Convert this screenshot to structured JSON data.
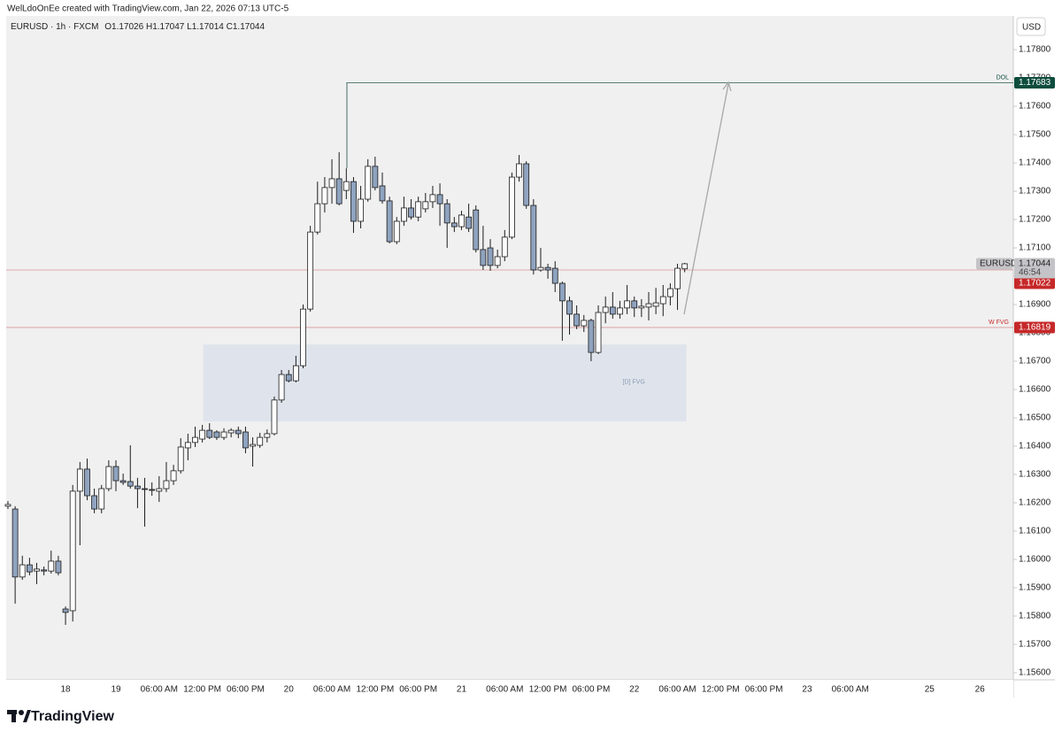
{
  "header": "WelLdoOnEe created with TradingView.com, Jan 22, 2026 07:13 UTC-5",
  "footer": "TradingView",
  "chart_data": {
    "type": "candlestick",
    "symbol": "EURUSD · 1h · FXCM",
    "ohlc_prefixes": [
      "O",
      "H",
      "L",
      "C"
    ],
    "currency": "USD",
    "last_price_symbol": "EURUSD",
    "countdown": "46:54",
    "up_color": "#ffffff",
    "down_color": "#8fa3bf",
    "border_color": "#1c1c1c",
    "grid": false,
    "ylim": [
      1.15575,
      1.17919
    ],
    "yticks": [
      {
        "value": 1.156,
        "label": "1.15600"
      },
      {
        "value": 1.157,
        "label": "1.15700"
      },
      {
        "value": 1.158,
        "label": "1.15800"
      },
      {
        "value": 1.159,
        "label": "1.15900"
      },
      {
        "value": 1.16,
        "label": "1.16000"
      },
      {
        "value": 1.161,
        "label": "1.16100"
      },
      {
        "value": 1.162,
        "label": "1.16200"
      },
      {
        "value": 1.163,
        "label": "1.16300"
      },
      {
        "value": 1.164,
        "label": "1.16400"
      },
      {
        "value": 1.165,
        "label": "1.16500"
      },
      {
        "value": 1.166,
        "label": "1.16600"
      },
      {
        "value": 1.167,
        "label": "1.16700"
      },
      {
        "value": 1.168,
        "label": "1.16800"
      },
      {
        "value": 1.169,
        "label": "1.16900"
      },
      {
        "value": 1.17,
        "label": "1.17000"
      },
      {
        "value": 1.171,
        "label": "1.17100"
      },
      {
        "value": 1.172,
        "label": "1.17200"
      },
      {
        "value": 1.173,
        "label": "1.17300"
      },
      {
        "value": 1.174,
        "label": "1.17400"
      },
      {
        "value": 1.175,
        "label": "1.17500"
      },
      {
        "value": 1.176,
        "label": "1.17600"
      },
      {
        "value": 1.177,
        "label": "1.17700"
      },
      {
        "value": 1.178,
        "label": "1.17800"
      }
    ],
    "categories": [
      null,
      null,
      null,
      null,
      null,
      null,
      null,
      null,
      "18",
      null,
      null,
      null,
      null,
      null,
      null,
      "19",
      null,
      null,
      null,
      null,
      null,
      "06:00 AM",
      null,
      null,
      null,
      null,
      null,
      "12:00 PM",
      null,
      null,
      null,
      null,
      null,
      "06:00 PM",
      null,
      null,
      null,
      null,
      null,
      "20",
      null,
      null,
      null,
      null,
      null,
      "06:00 AM",
      null,
      null,
      null,
      null,
      null,
      "12:00 PM",
      null,
      null,
      null,
      null,
      null,
      "06:00 PM",
      null,
      null,
      null,
      null,
      null,
      "21",
      null,
      null,
      null,
      null,
      null,
      "06:00 AM",
      null,
      null,
      null,
      null,
      null,
      "12:00 PM",
      null,
      null,
      null,
      null,
      null,
      "06:00 PM",
      null,
      null,
      null,
      null,
      null,
      "22",
      null,
      null,
      null,
      null,
      null,
      "06:00 AM",
      null,
      null,
      null,
      null,
      null,
      "12:00 PM",
      null,
      null,
      null,
      null,
      null,
      "06:00 PM",
      null,
      null,
      null,
      null,
      null,
      "23",
      null,
      null,
      null,
      null,
      null,
      "06:00 AM",
      null,
      null,
      null,
      null,
      null,
      null,
      null,
      null,
      null,
      null,
      "25",
      null,
      null,
      null,
      null,
      null,
      null,
      "26",
      null,
      null,
      null
    ],
    "open": [
      1.16188,
      1.16178,
      1.15938,
      1.15981,
      1.15959,
      1.15963,
      1.15959,
      1.15994,
      1.15825,
      1.15819,
      1.16241,
      1.16319,
      1.16225,
      1.16178,
      1.1625,
      1.16328,
      1.16278,
      1.16275,
      1.16259,
      1.1625,
      1.16247,
      1.16241,
      1.1625,
      1.16278,
      1.16313,
      1.16394,
      1.16413,
      1.16425,
      1.16456,
      1.1645,
      1.16431,
      1.16447,
      1.16456,
      1.1645,
      1.164,
      1.16403,
      1.16431,
      1.16444,
      1.16563,
      1.16653,
      1.16631,
      1.16684,
      1.16884,
      1.17156,
      1.17256,
      1.17313,
      1.17344,
      1.17303,
      1.17334,
      1.17194,
      1.17272,
      1.17388,
      1.17319,
      1.17266,
      1.17122,
      1.17194,
      1.17241,
      1.17209,
      1.17238,
      1.17263,
      1.17288,
      1.17256,
      1.17188,
      1.17175,
      1.17209,
      1.17234,
      1.17094,
      1.171,
      1.17038,
      1.17069,
      1.17138,
      1.1735,
      1.17397,
      1.1725,
      1.17022,
      1.17031,
      1.17028,
      1.16975,
      1.16913,
      1.16866,
      1.16825,
      1.16844,
      1.16731,
      1.16872,
      1.16891,
      1.16866,
      1.16888,
      1.16913,
      1.16888,
      1.16891,
      1.16894,
      1.16903,
      1.16928,
      1.16956,
      1.17026,
      null,
      null,
      null,
      null,
      null,
      null,
      null,
      null,
      null,
      null,
      null,
      null,
      null,
      null,
      null,
      null,
      null,
      null,
      null,
      null,
      null,
      null,
      null,
      null,
      null,
      null,
      null,
      null,
      null,
      null,
      null,
      null,
      null,
      null,
      null,
      null,
      null,
      null,
      null,
      null,
      null,
      null,
      null,
      null
    ],
    "high": [
      1.16206,
      1.16188,
      1.16013,
      1.16006,
      1.15988,
      1.15975,
      1.16031,
      1.16013,
      1.15834,
      1.16263,
      1.16344,
      1.16356,
      1.1625,
      1.16263,
      1.1635,
      1.1635,
      1.16303,
      1.16403,
      1.16288,
      1.16288,
      1.16272,
      1.16294,
      1.16344,
      1.16334,
      1.16428,
      1.16444,
      1.16469,
      1.16475,
      1.16481,
      1.16456,
      1.16463,
      1.16463,
      1.16469,
      1.16469,
      1.16431,
      1.16447,
      1.16459,
      1.16575,
      1.16669,
      1.16669,
      1.16719,
      1.169,
      1.17178,
      1.17334,
      1.1735,
      1.17413,
      1.17438,
      1.17381,
      1.1735,
      1.17319,
      1.17413,
      1.17422,
      1.17366,
      1.17281,
      1.17209,
      1.17281,
      1.17272,
      1.17281,
      1.17294,
      1.17319,
      1.17328,
      1.17272,
      1.17209,
      1.17231,
      1.17256,
      1.1725,
      1.17178,
      1.17131,
      1.17094,
      1.17163,
      1.17366,
      1.17428,
      1.17406,
      1.17272,
      1.171,
      1.17044,
      1.17053,
      1.16981,
      1.16928,
      1.16897,
      1.16863,
      1.1685,
      1.16897,
      1.16928,
      1.16944,
      1.16913,
      1.16969,
      1.16928,
      1.16919,
      1.16944,
      1.16959,
      1.16969,
      1.16975,
      1.17044,
      1.17047,
      null,
      null,
      null,
      null,
      null,
      null,
      null,
      null,
      null,
      null,
      null,
      null,
      null,
      null,
      null,
      null,
      null,
      null,
      null,
      null,
      null,
      null,
      null,
      null,
      null,
      null,
      null,
      null,
      null,
      null,
      null,
      null,
      null,
      null,
      null,
      null,
      null,
      null,
      null,
      null,
      null,
      null,
      null,
      null
    ],
    "low": [
      1.16178,
      1.15844,
      1.15928,
      1.15944,
      1.15913,
      1.15944,
      1.1595,
      1.15944,
      1.15769,
      1.15781,
      1.1605,
      1.16209,
      1.16163,
      1.16163,
      1.16241,
      1.16241,
      1.16263,
      1.1625,
      1.16181,
      1.16116,
      1.16225,
      1.16203,
      1.16238,
      1.16263,
      1.16303,
      1.1635,
      1.16397,
      1.16413,
      1.16425,
      1.16422,
      1.16422,
      1.16431,
      1.16428,
      1.16375,
      1.16328,
      1.16394,
      1.16413,
      1.16438,
      1.16553,
      1.16625,
      1.16625,
      1.16675,
      1.16875,
      1.17147,
      1.17225,
      1.17256,
      1.1725,
      1.17272,
      1.17153,
      1.17169,
      1.17263,
      1.17303,
      1.17256,
      1.17116,
      1.17113,
      1.17178,
      1.172,
      1.17194,
      1.17225,
      1.17241,
      1.17178,
      1.171,
      1.17156,
      1.17163,
      1.17156,
      1.17084,
      1.17022,
      1.17019,
      1.17028,
      1.17053,
      1.17131,
      1.17334,
      1.17238,
      1.17006,
      1.17016,
      1.16991,
      1.16944,
      1.16772,
      1.16794,
      1.16813,
      1.16803,
      1.167,
      1.16725,
      1.16834,
      1.1685,
      1.1685,
      1.16866,
      1.16856,
      1.16856,
      1.16844,
      1.16866,
      1.16859,
      1.16897,
      1.16881,
      1.17014,
      null,
      null,
      null,
      null,
      null,
      null,
      null,
      null,
      null,
      null,
      null,
      null,
      null,
      null,
      null,
      null,
      null,
      null,
      null,
      null,
      null,
      null,
      null,
      null,
      null,
      null,
      null,
      null,
      null,
      null,
      null,
      null,
      null,
      null,
      null,
      null,
      null,
      null,
      null,
      null,
      null,
      null,
      null,
      null
    ],
    "close": [
      1.16194,
      1.15938,
      1.15981,
      1.15956,
      1.15966,
      1.15959,
      1.15994,
      1.15953,
      1.15813,
      1.16241,
      1.16319,
      1.16225,
      1.16178,
      1.1625,
      1.16328,
      1.16278,
      1.16272,
      1.16259,
      1.1625,
      1.16247,
      1.16244,
      1.1625,
      1.16278,
      1.16313,
      1.16397,
      1.16413,
      1.16431,
      1.16456,
      1.16431,
      1.16431,
      1.1645,
      1.16456,
      1.16444,
      1.16394,
      1.16406,
      1.16431,
      1.16444,
      1.16563,
      1.16653,
      1.16631,
      1.16684,
      1.16884,
      1.17156,
      1.17256,
      1.17313,
      1.17344,
      1.17256,
      1.17334,
      1.17194,
      1.17272,
      1.17388,
      1.17313,
      1.17266,
      1.17122,
      1.17194,
      1.17241,
      1.17209,
      1.17263,
      1.17263,
      1.17288,
      1.17256,
      1.17188,
      1.17175,
      1.17216,
      1.17169,
      1.17094,
      1.17038,
      1.17038,
      1.17069,
      1.17138,
      1.1735,
      1.17397,
      1.1725,
      1.17022,
      1.17031,
      1.17022,
      1.16975,
      1.16913,
      1.16866,
      1.16825,
      1.16844,
      1.16731,
      1.16872,
      1.16891,
      1.16866,
      1.16888,
      1.16913,
      1.16888,
      1.16894,
      1.16903,
      1.16906,
      1.16928,
      1.16956,
      1.17028,
      1.17044,
      null,
      null,
      null,
      null,
      null,
      null,
      null,
      null,
      null,
      null,
      null,
      null,
      null,
      null,
      null,
      null,
      null,
      null,
      null,
      null,
      null,
      null,
      null,
      null,
      null,
      null,
      null,
      null,
      null,
      null,
      null,
      null,
      null,
      null,
      null,
      null,
      null,
      null,
      null,
      null,
      null,
      null,
      null,
      null
    ],
    "zones": [
      {
        "label": "[D] FVG",
        "top": 1.16759,
        "bottom": 1.16487,
        "color": "#dfe4ec"
      }
    ],
    "price_lines": [
      {
        "label": "DOL",
        "value": 1.17683,
        "color": "#0d4d3e"
      },
      {
        "label": "W FVG",
        "value": 1.16819,
        "color": "#c62828"
      },
      {
        "value": 1.17022,
        "color": "#c62828"
      }
    ]
  }
}
